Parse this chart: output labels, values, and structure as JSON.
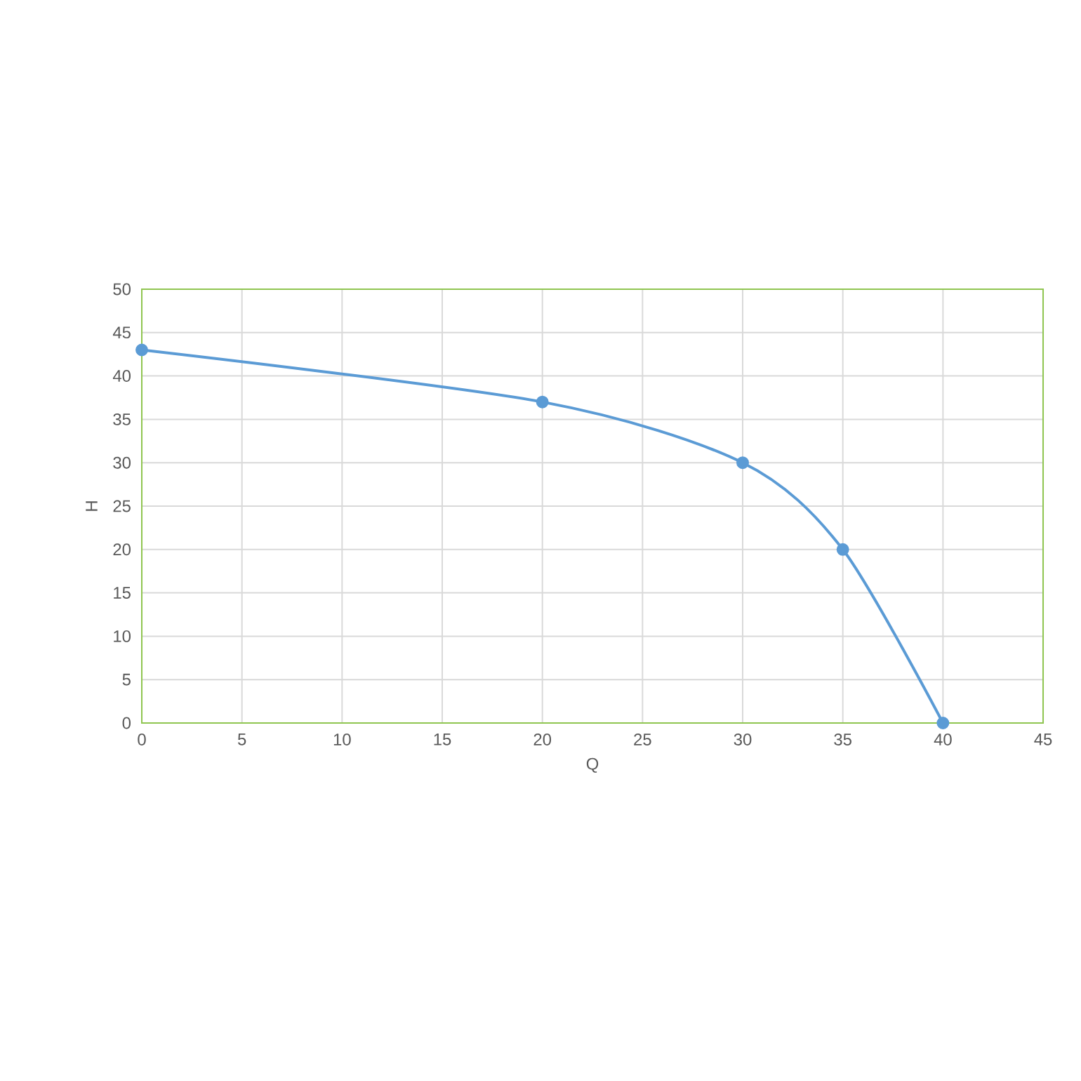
{
  "chart_data": {
    "type": "line",
    "xlabel": "Q",
    "ylabel": "H",
    "x": [
      0,
      20,
      30,
      35,
      40
    ],
    "series": [
      {
        "color": "#5b9bd5",
        "values": [
          43,
          37,
          30,
          20,
          0
        ]
      }
    ],
    "xlim": [
      0,
      45
    ],
    "ylim": [
      0,
      50
    ],
    "xticks": [
      0,
      5,
      10,
      15,
      20,
      25,
      30,
      35,
      40,
      45
    ],
    "yticks": [
      0,
      5,
      10,
      15,
      20,
      25,
      30,
      35,
      40,
      45,
      50
    ],
    "grid": true,
    "marker": "circle",
    "line_style": "solid"
  }
}
